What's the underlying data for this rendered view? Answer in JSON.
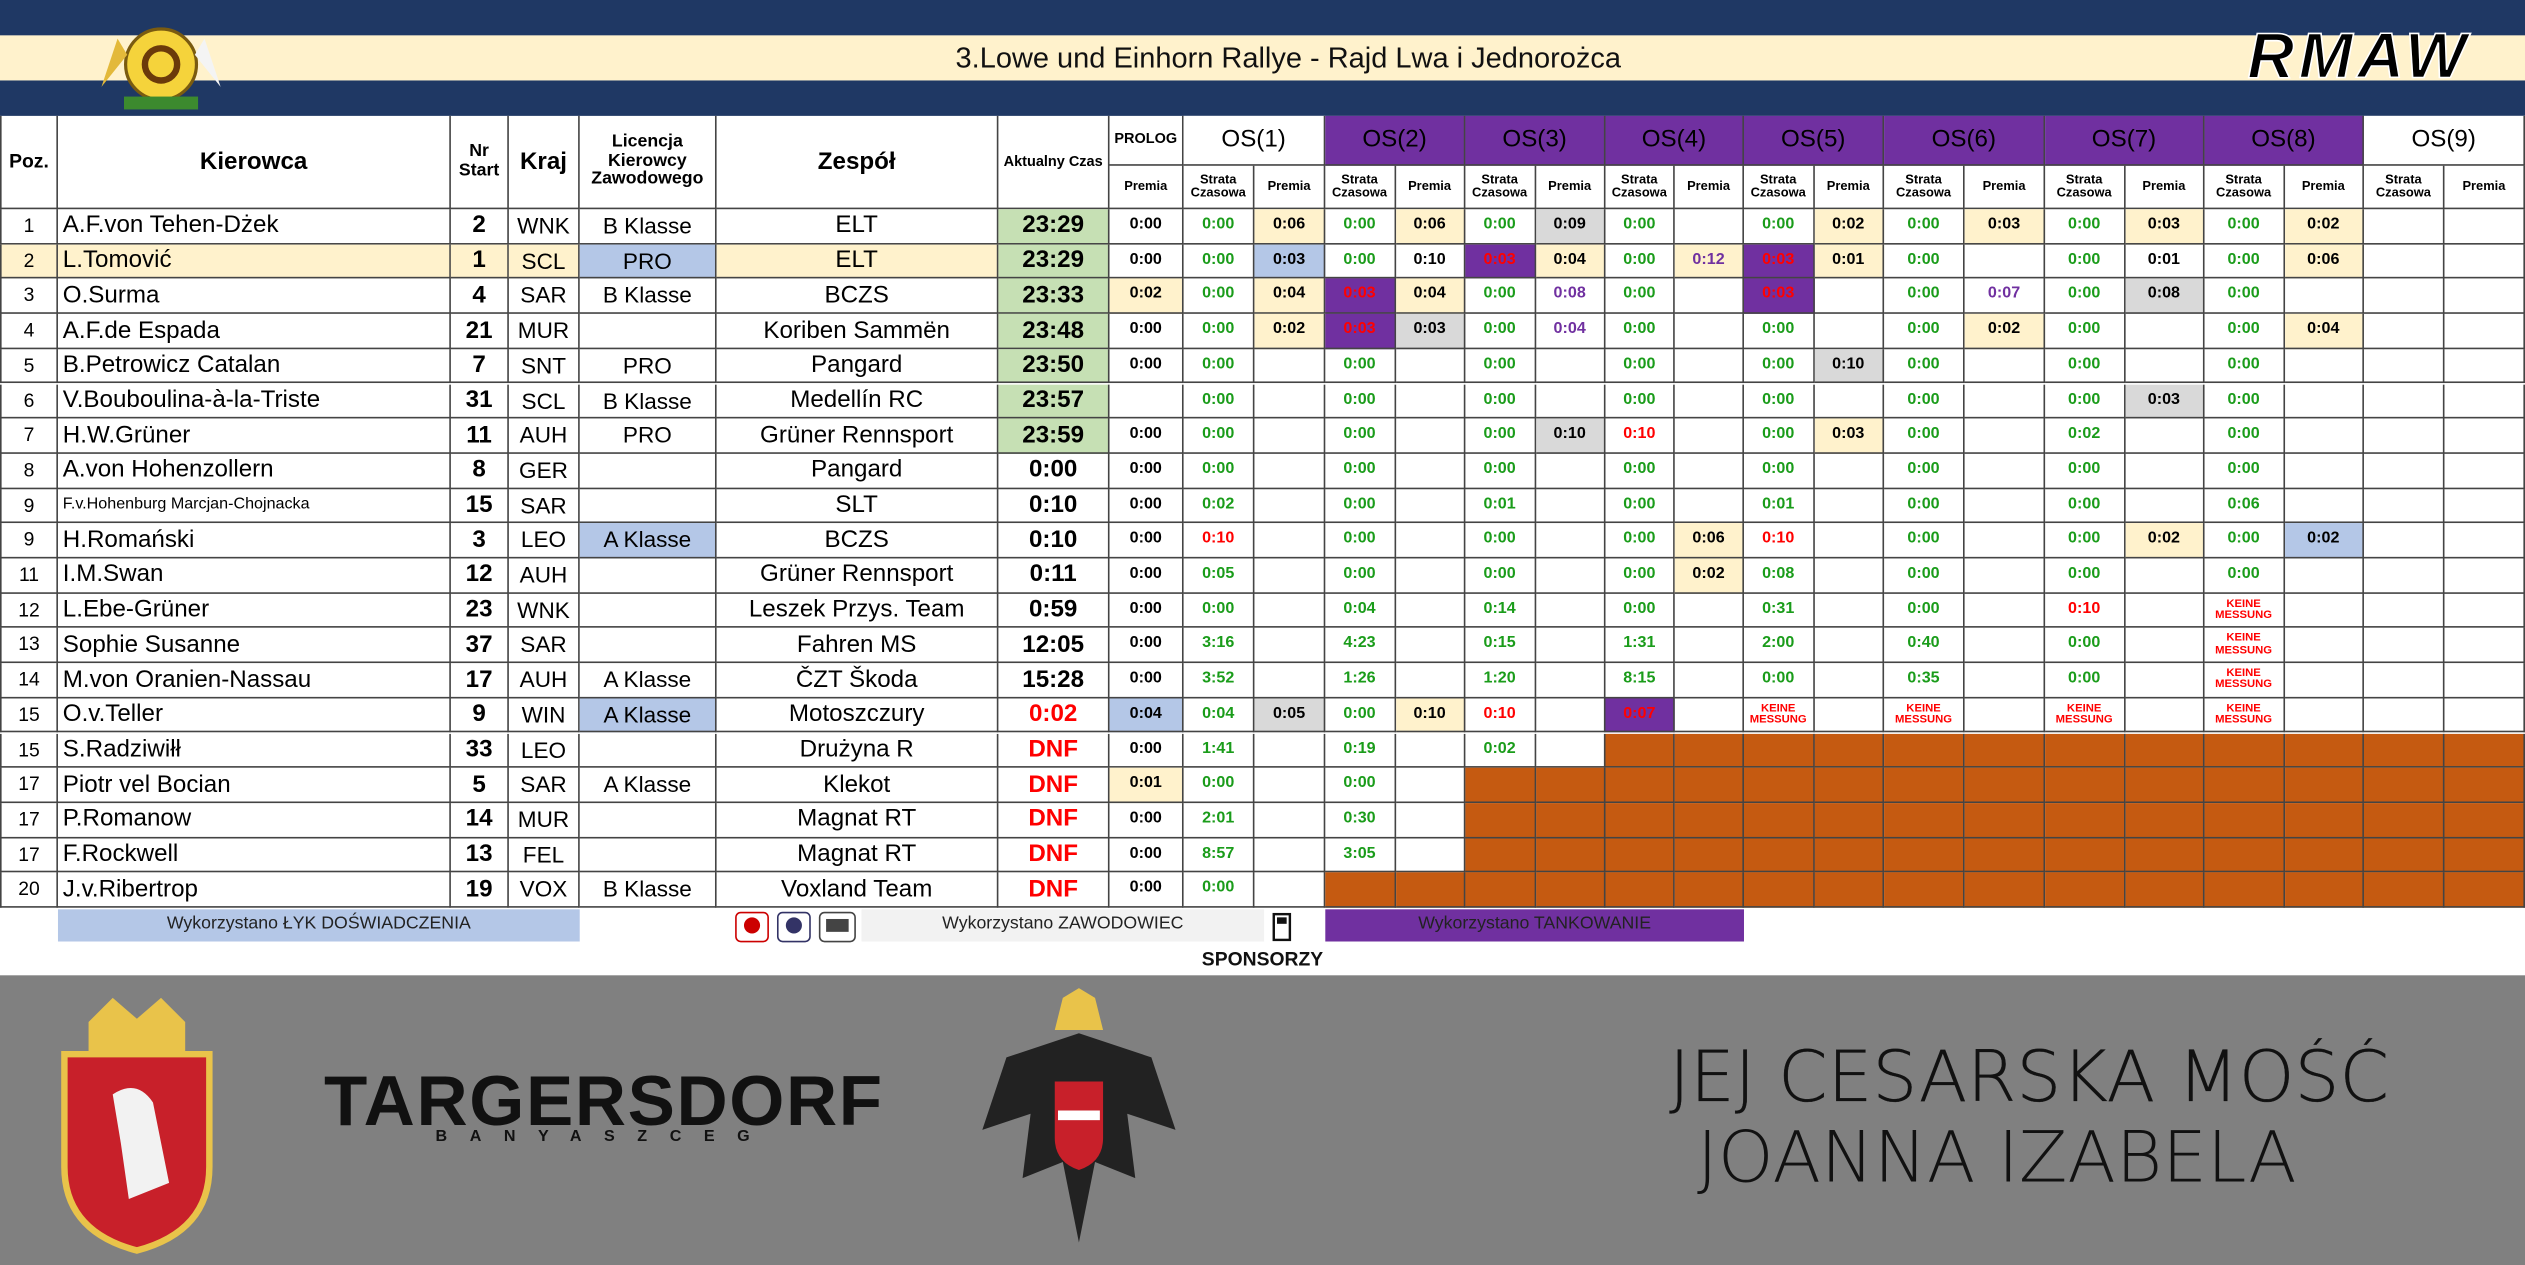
{
  "banner": {
    "title": "3.Lowe und Einhorn Rallye - Rajd Lwa i Jednorożca",
    "logo": "RMAW"
  },
  "table": {
    "columns": [
      "Poz.",
      "Kierowca",
      "Nr Start",
      "Kraj",
      "Licencja Kierowcy Zawodowego",
      "Zespół",
      "Aktualny Czas",
      "PROLOG"
    ],
    "prolog_sublabel": "Premia",
    "stages": [
      {
        "name": "OS(1)",
        "fill": "#ffffff"
      },
      {
        "name": "OS(2)",
        "fill": "#7030a0"
      },
      {
        "name": "OS(3)",
        "fill": "#7030a0"
      },
      {
        "name": "OS(4)",
        "fill": "#7030a0"
      },
      {
        "name": "OS(5)",
        "fill": "#7030a0"
      },
      {
        "name": "OS(6)",
        "fill": "#7030a0"
      },
      {
        "name": "OS(7)",
        "fill": "#7030a0"
      },
      {
        "name": "OS(8)",
        "fill": "#7030a0"
      },
      {
        "name": "OS(9)",
        "fill": "#ffffff"
      }
    ],
    "stage_sublabels": [
      "Strata Czasowa",
      "Premia"
    ],
    "styles": {
      "y": {
        "bg": "#fff2cc"
      },
      "yv": {
        "bg": "#fff2cc",
        "fg": "#7030a0"
      },
      "g": {
        "bg": "#d9d9d9"
      },
      "b": {
        "bg": "#b4c7e7"
      },
      "p": {
        "bg": "#7030a0",
        "fg": "#ff0000"
      },
      "r": {
        "fg": "#ff0000"
      },
      "v": {
        "fg": "#7030a0"
      },
      "k": {
        "fg": "#ff0000",
        "size": 7
      },
      "o": {
        "bg": "#c55a11"
      },
      "lead": {
        "bg": "#c6e0b4"
      },
      "red": {
        "fg": "#ff0000"
      },
      "small": {
        "size": 10
      }
    },
    "rows": [
      {
        "poz": "1",
        "driver": "A.F.von Tehen-Dżek",
        "nr": "2",
        "kraj": "WNK",
        "licence": "B Klasse",
        "team": "ELT",
        "time": "23:29",
        "time_style": "lead",
        "cells": [
          "0:00",
          "0:00",
          {
            "text": "0:06",
            "style": "y"
          },
          "0:00",
          {
            "text": "0:06",
            "style": "y"
          },
          "0:00",
          {
            "text": "0:09",
            "style": "g"
          },
          "0:00",
          null,
          "0:00",
          {
            "text": "0:02",
            "style": "y"
          },
          "0:00",
          {
            "text": "0:03",
            "style": "y"
          },
          "0:00",
          {
            "text": "0:03",
            "style": "y"
          },
          "0:00",
          {
            "text": "0:02",
            "style": "y"
          },
          null,
          null
        ]
      },
      {
        "poz": "2",
        "driver": "L.Tomović",
        "nr": "1",
        "kraj": "SCL",
        "licence": {
          "text": "PRO",
          "style": "b"
        },
        "team": "ELT",
        "time": "23:29",
        "time_style": "lead",
        "highlight": "y",
        "cells": [
          "0:00",
          "0:00",
          {
            "text": "0:03",
            "style": "b"
          },
          "0:00",
          "0:10",
          {
            "text": "0:03",
            "style": "p"
          },
          {
            "text": "0:04",
            "style": "y"
          },
          "0:00",
          {
            "text": "0:12",
            "style": "yv"
          },
          {
            "text": "0:03",
            "style": "p"
          },
          {
            "text": "0:01",
            "style": "y"
          },
          "0:00",
          null,
          "0:00",
          "0:01",
          "0:00",
          {
            "text": "0:06",
            "style": "y"
          },
          null,
          null
        ]
      },
      {
        "poz": "3",
        "driver": "O.Surma",
        "nr": "4",
        "kraj": "SAR",
        "licence": "B Klasse",
        "team": "BCZS",
        "time": "23:33",
        "time_style": "lead",
        "cells": [
          {
            "text": "0:02",
            "style": "y"
          },
          "0:00",
          {
            "text": "0:04",
            "style": "y"
          },
          {
            "text": "0:03",
            "style": "p"
          },
          {
            "text": "0:04",
            "style": "y"
          },
          "0:00",
          {
            "text": "0:08",
            "style": "v"
          },
          "0:00",
          null,
          {
            "text": "0:03",
            "style": "p"
          },
          null,
          "0:00",
          {
            "text": "0:07",
            "style": "v"
          },
          "0:00",
          {
            "text": "0:08",
            "style": "g"
          },
          "0:00",
          null,
          null,
          null
        ]
      },
      {
        "poz": "4",
        "driver": "A.F.de Espada",
        "nr": "21",
        "kraj": "MUR",
        "licence": null,
        "team": "Koriben Sammën",
        "time": "23:48",
        "time_style": "lead",
        "cells": [
          "0:00",
          "0:00",
          {
            "text": "0:02",
            "style": "y"
          },
          {
            "text": "0:03",
            "style": "p"
          },
          {
            "text": "0:03",
            "style": "g"
          },
          "0:00",
          {
            "text": "0:04",
            "style": "v"
          },
          "0:00",
          null,
          "0:00",
          null,
          "0:00",
          {
            "text": "0:02",
            "style": "y"
          },
          "0:00",
          null,
          "0:00",
          {
            "text": "0:04",
            "style": "y"
          },
          null,
          null
        ]
      },
      {
        "poz": "5",
        "driver": "B.Petrowicz Catalan",
        "nr": "7",
        "kraj": "SNT",
        "licence": "PRO",
        "team": "Pangard",
        "time": "23:50",
        "time_style": "lead",
        "cells": [
          "0:00",
          "0:00",
          null,
          "0:00",
          null,
          "0:00",
          null,
          "0:00",
          null,
          "0:00",
          {
            "text": "0:10",
            "style": "g"
          },
          "0:00",
          null,
          "0:00",
          null,
          "0:00",
          null,
          null,
          null
        ]
      },
      {
        "poz": "6",
        "driver": "V.Bouboulina-à-la-Triste",
        "nr": "31",
        "kraj": "SCL",
        "licence": "B Klasse",
        "team": "Medellín RC",
        "time": "23:57",
        "time_style": "lead",
        "cells": [
          null,
          "0:00",
          null,
          "0:00",
          null,
          "0:00",
          null,
          "0:00",
          null,
          "0:00",
          null,
          "0:00",
          null,
          "0:00",
          {
            "text": "0:03",
            "style": "g"
          },
          "0:00",
          null,
          null,
          null
        ]
      },
      {
        "poz": "7",
        "driver": "H.W.Grüner",
        "nr": "11",
        "kraj": "AUH",
        "licence": "PRO",
        "team": "Grüner Rennsport",
        "time": "23:59",
        "time_style": "lead",
        "cells": [
          "0:00",
          "0:00",
          null,
          "0:00",
          null,
          "0:00",
          {
            "text": "0:10",
            "style": "g"
          },
          {
            "text": "0:10",
            "style": "r"
          },
          null,
          "0:00",
          {
            "text": "0:03",
            "style": "y"
          },
          "0:00",
          null,
          "0:02",
          null,
          "0:00",
          null,
          null,
          null
        ]
      },
      {
        "poz": "8",
        "driver": "A.von Hohenzollern",
        "nr": "8",
        "kraj": "GER",
        "licence": null,
        "team": "Pangard",
        "time": "0:00",
        "cells": [
          "0:00",
          "0:00",
          null,
          "0:00",
          null,
          "0:00",
          null,
          "0:00",
          null,
          "0:00",
          null,
          "0:00",
          null,
          "0:00",
          null,
          "0:00",
          null,
          null,
          null
        ]
      },
      {
        "poz": "9",
        "driver": "F.v.Hohenburg Marcjan-Chojnacka",
        "driver_style": "small",
        "nr": "15",
        "kraj": "SAR",
        "licence": null,
        "team": "SLT",
        "time": "0:10",
        "cells": [
          "0:00",
          "0:02",
          null,
          "0:00",
          null,
          "0:01",
          null,
          "0:00",
          null,
          "0:01",
          null,
          "0:00",
          null,
          "0:00",
          null,
          "0:06",
          null,
          null,
          null
        ]
      },
      {
        "poz": "9",
        "driver": "H.Romański",
        "nr": "3",
        "kraj": "LEO",
        "licence": {
          "text": "A Klasse",
          "style": "b"
        },
        "team": "BCZS",
        "time": "0:10",
        "cells": [
          "0:00",
          {
            "text": "0:10",
            "style": "r"
          },
          null,
          "0:00",
          null,
          "0:00",
          null,
          "0:00",
          {
            "text": "0:06",
            "style": "y"
          },
          {
            "text": "0:10",
            "style": "r"
          },
          null,
          "0:00",
          null,
          "0:00",
          {
            "text": "0:02",
            "style": "y"
          },
          "0:00",
          {
            "text": "0:02",
            "style": "b"
          },
          null,
          null
        ]
      },
      {
        "poz": "11",
        "driver": "I.M.Swan",
        "nr": "12",
        "kraj": "AUH",
        "licence": null,
        "team": "Grüner Rennsport",
        "time": "0:11",
        "cells": [
          "0:00",
          "0:05",
          null,
          "0:00",
          null,
          "0:00",
          null,
          "0:00",
          {
            "text": "0:02",
            "style": "y"
          },
          "0:08",
          null,
          "0:00",
          null,
          "0:00",
          null,
          "0:00",
          null,
          null,
          null
        ]
      },
      {
        "poz": "12",
        "driver": "L.Ebe-Grüner",
        "nr": "23",
        "kraj": "WNK",
        "licence": null,
        "team": "Leszek Przys. Team",
        "time": "0:59",
        "cells": [
          "0:00",
          "0:00",
          null,
          "0:04",
          null,
          "0:14",
          null,
          "0:00",
          null,
          "0:31",
          null,
          "0:00",
          null,
          {
            "text": "0:10",
            "style": "r"
          },
          null,
          {
            "text": "KEINE MESSUNG",
            "style": "k"
          },
          null,
          null,
          null
        ]
      },
      {
        "poz": "13",
        "driver": "Sophie Susanne",
        "nr": "37",
        "kraj": "SAR",
        "licence": null,
        "team": "Fahren MS",
        "time": "12:05",
        "cells": [
          "0:00",
          "3:16",
          null,
          "4:23",
          null,
          "0:15",
          null,
          "1:31",
          null,
          "2:00",
          null,
          "0:40",
          null,
          "0:00",
          null,
          {
            "text": "KEINE MESSUNG",
            "style": "k"
          },
          null,
          null,
          null
        ]
      },
      {
        "poz": "14",
        "driver": "M.von Oranien-Nassau",
        "nr": "17",
        "kraj": "AUH",
        "licence": "A Klasse",
        "team": "ČZT Škoda",
        "time": "15:28",
        "cells": [
          "0:00",
          "3:52",
          null,
          "1:26",
          null,
          "1:20",
          null,
          "8:15",
          null,
          "0:00",
          null,
          "0:35",
          null,
          "0:00",
          null,
          {
            "text": "KEINE MESSUNG",
            "style": "k"
          },
          null,
          null,
          null
        ]
      },
      {
        "poz": "15",
        "driver": "O.v.Teller",
        "nr": "9",
        "kraj": "WIN",
        "licence": {
          "text": "A Klasse",
          "style": "b"
        },
        "team": "Motoszczury",
        "time": "0:02",
        "time_style": "red",
        "cells": [
          {
            "text": "0:04",
            "style": "b"
          },
          "0:04",
          {
            "text": "0:05",
            "style": "g"
          },
          "0:00",
          {
            "text": "0:10",
            "style": "y"
          },
          {
            "text": "0:10",
            "style": "r"
          },
          null,
          {
            "text": "0:07",
            "style": "p"
          },
          null,
          {
            "text": "KEINE MESSUNG",
            "style": "k"
          },
          null,
          {
            "text": "KEINE MESSUNG",
            "style": "k"
          },
          null,
          {
            "text": "KEINE MESSUNG",
            "style": "k"
          },
          null,
          {
            "text": "KEINE MESSUNG",
            "style": "k"
          },
          null,
          null,
          null
        ]
      },
      {
        "poz": "15",
        "driver": "S.Radziwiłł",
        "nr": "33",
        "kraj": "LEO",
        "licence": null,
        "team": "Drużyna R",
        "time": "DNF",
        "time_style": "red",
        "cells": [
          "0:00",
          "1:41",
          null,
          "0:19",
          null,
          "0:02",
          null,
          {
            "style": "o"
          },
          {
            "style": "o"
          },
          {
            "style": "o"
          },
          {
            "style": "o"
          },
          {
            "style": "o"
          },
          {
            "style": "o"
          },
          {
            "style": "o"
          },
          {
            "style": "o"
          },
          {
            "style": "o"
          },
          {
            "style": "o"
          },
          {
            "style": "o"
          },
          {
            "style": "o"
          }
        ]
      },
      {
        "poz": "17",
        "driver": "Piotr vel Bocian",
        "nr": "5",
        "kraj": "SAR",
        "licence": "A Klasse",
        "team": "Klekot",
        "time": "DNF",
        "time_style": "red",
        "cells": [
          {
            "text": "0:01",
            "style": "y"
          },
          "0:00",
          null,
          "0:00",
          null,
          {
            "style": "o"
          },
          {
            "style": "o"
          },
          {
            "style": "o"
          },
          {
            "style": "o"
          },
          {
            "style": "o"
          },
          {
            "style": "o"
          },
          {
            "style": "o"
          },
          {
            "style": "o"
          },
          {
            "style": "o"
          },
          {
            "style": "o"
          },
          {
            "style": "o"
          },
          {
            "style": "o"
          },
          {
            "style": "o"
          },
          {
            "style": "o"
          }
        ]
      },
      {
        "poz": "17",
        "driver": "P.Romanow",
        "nr": "14",
        "kraj": "MUR",
        "licence": null,
        "team": "Magnat RT",
        "time": "DNF",
        "time_style": "red",
        "cells": [
          "0:00",
          "2:01",
          null,
          "0:30",
          null,
          {
            "style": "o"
          },
          {
            "style": "o"
          },
          {
            "style": "o"
          },
          {
            "style": "o"
          },
          {
            "style": "o"
          },
          {
            "style": "o"
          },
          {
            "style": "o"
          },
          {
            "style": "o"
          },
          {
            "style": "o"
          },
          {
            "style": "o"
          },
          {
            "style": "o"
          },
          {
            "style": "o"
          },
          {
            "style": "o"
          },
          {
            "style": "o"
          }
        ]
      },
      {
        "poz": "17",
        "driver": "F.Rockwell",
        "nr": "13",
        "kraj": "FEL",
        "licence": null,
        "team": "Magnat RT",
        "time": "DNF",
        "time_style": "red",
        "cells": [
          "0:00",
          "8:57",
          null,
          "3:05",
          null,
          {
            "style": "o"
          },
          {
            "style": "o"
          },
          {
            "style": "o"
          },
          {
            "style": "o"
          },
          {
            "style": "o"
          },
          {
            "style": "o"
          },
          {
            "style": "o"
          },
          {
            "style": "o"
          },
          {
            "style": "o"
          },
          {
            "style": "o"
          },
          {
            "style": "o"
          },
          {
            "style": "o"
          },
          {
            "style": "o"
          },
          {
            "style": "o"
          }
        ]
      },
      {
        "poz": "20",
        "driver": "J.v.Ribertrop",
        "nr": "19",
        "kraj": "VOX",
        "licence": "B Klasse",
        "team": "Voxland Team",
        "time": "DNF",
        "time_style": "red",
        "cells": [
          "0:00",
          "0:00",
          null,
          {
            "style": "o"
          },
          {
            "style": "o"
          },
          {
            "style": "o"
          },
          {
            "style": "o"
          },
          {
            "style": "o"
          },
          {
            "style": "o"
          },
          {
            "style": "o"
          },
          {
            "style": "o"
          },
          {
            "style": "o"
          },
          {
            "style": "o"
          },
          {
            "style": "o"
          },
          {
            "style": "o"
          },
          {
            "style": "o"
          },
          {
            "style": "o"
          },
          {
            "style": "o"
          },
          {
            "style": "o"
          }
        ]
      }
    ]
  },
  "legend": [
    {
      "text": "Wykorzystano ŁYK DOŚWIADCZENIA",
      "fill": "#b4c7e7"
    },
    {
      "text": "Wykorzystano ZAWODOWIEC",
      "fill": "#f2f2f2"
    },
    {
      "text": "Wykorzystano TANKOWANIE",
      "fill": "#7030a0"
    }
  ],
  "sponsors": {
    "heading": "SPONSORZY",
    "brand": "TARGERSDORF",
    "brand_sub": "BANYASZCEG",
    "patron": [
      "JEJ CESARSKA MOŚĆ",
      "JOANNA IZABELA"
    ]
  }
}
